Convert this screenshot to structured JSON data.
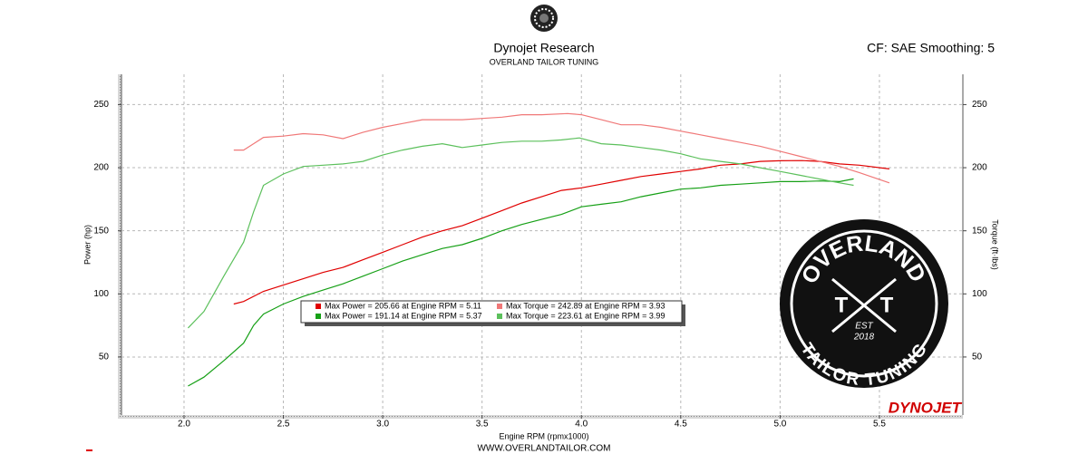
{
  "chart_data": {
    "type": "line",
    "title": "Dynojet Research",
    "subtitle": "OVERLAND TAILOR TUNING",
    "settings_label": "CF: SAE Smoothing: 5",
    "x_label": "Engine RPM (rpmx1000)",
    "y_label": "Power (hp)",
    "y2_label": "Torque (ft·lbs)",
    "footer": "WWW.OVERLANDTAILOR.COM",
    "brand": "DYNOJET",
    "logo": {
      "top": "OVERLAND",
      "bottom": "TAILOR TUNING",
      "left": "T",
      "right": "T",
      "est": "EST",
      "year": "2018"
    },
    "grid": true,
    "xlim": [
      1.667,
      5.92
    ],
    "xticks": [
      {
        "value": 2,
        "label": "2.0"
      },
      2.5,
      {
        "value": 3,
        "label": "3.0"
      },
      3.5,
      {
        "value": 4,
        "label": "4.0"
      },
      4.5,
      {
        "value": 5,
        "label": "5.0"
      },
      5.5
    ],
    "ylim": [
      4,
      274
    ],
    "yticks": [
      50,
      100,
      150,
      200,
      250
    ],
    "y2lim": [
      4,
      274
    ],
    "y2ticks": [
      50,
      100,
      150,
      200,
      250
    ],
    "series": [
      {
        "name": "Max Power = 205.66 at Engine RPM = 5.11",
        "color": "#e00000",
        "x": [
          2.25,
          2.3,
          2.4,
          2.5,
          2.6,
          2.7,
          2.8,
          2.9,
          3.0,
          3.1,
          3.2,
          3.3,
          3.4,
          3.5,
          3.6,
          3.7,
          3.8,
          3.9,
          4.0,
          4.1,
          4.2,
          4.3,
          4.4,
          4.5,
          4.6,
          4.7,
          4.8,
          4.9,
          5.0,
          5.11,
          5.2,
          5.3,
          5.4,
          5.55
        ],
        "values": [
          92,
          94,
          102,
          107,
          112,
          117,
          121,
          127,
          133,
          139,
          145,
          150,
          154,
          160,
          166,
          172,
          177,
          182,
          184,
          187,
          190,
          193,
          195,
          197,
          199,
          202,
          203,
          205,
          205.5,
          205.66,
          205,
          203,
          202,
          199
        ]
      },
      {
        "name": "Max Power = 191.14 at Engine RPM = 5.37",
        "color": "#16a016",
        "x": [
          2.02,
          2.1,
          2.2,
          2.3,
          2.35,
          2.4,
          2.5,
          2.6,
          2.7,
          2.8,
          2.9,
          3.0,
          3.1,
          3.2,
          3.3,
          3.4,
          3.5,
          3.6,
          3.7,
          3.8,
          3.9,
          4.0,
          4.1,
          4.2,
          4.3,
          4.4,
          4.5,
          4.6,
          4.7,
          4.8,
          4.9,
          5.0,
          5.1,
          5.2,
          5.3,
          5.37
        ],
        "values": [
          27,
          34,
          47,
          61,
          75,
          84,
          92,
          98,
          103,
          108,
          114,
          120,
          126,
          131,
          136,
          139,
          144,
          150,
          155,
          159,
          163,
          169,
          171,
          173,
          177,
          180,
          183,
          184,
          186,
          187,
          188,
          189,
          189,
          189.5,
          189,
          191.14
        ]
      },
      {
        "name": "Max Torque = 242.89 at Engine RPM = 3.93",
        "color": "#f07878",
        "axis": "y2",
        "x": [
          2.25,
          2.3,
          2.35,
          2.4,
          2.5,
          2.6,
          2.7,
          2.8,
          2.9,
          3.0,
          3.1,
          3.2,
          3.3,
          3.4,
          3.5,
          3.6,
          3.7,
          3.8,
          3.93,
          4.0,
          4.1,
          4.2,
          4.3,
          4.4,
          4.5,
          4.6,
          4.7,
          4.8,
          4.9,
          5.0,
          5.1,
          5.2,
          5.3,
          5.4,
          5.55
        ],
        "values": [
          214,
          214,
          219,
          224,
          225,
          227,
          226,
          223,
          228,
          232,
          235,
          238,
          238,
          238,
          239,
          240,
          242,
          242,
          242.89,
          242,
          238,
          234,
          234,
          232,
          229,
          226,
          223,
          220,
          217,
          213,
          209,
          205,
          201,
          196,
          188
        ]
      },
      {
        "name": "Max Torque = 223.61 at Engine RPM = 3.99",
        "color": "#5cc05c",
        "axis": "y2",
        "x": [
          2.02,
          2.1,
          2.2,
          2.3,
          2.35,
          2.4,
          2.5,
          2.6,
          2.7,
          2.8,
          2.9,
          3.0,
          3.1,
          3.2,
          3.3,
          3.4,
          3.5,
          3.6,
          3.7,
          3.8,
          3.9,
          3.99,
          4.1,
          4.2,
          4.3,
          4.4,
          4.5,
          4.6,
          4.7,
          4.8,
          4.9,
          5.0,
          5.1,
          5.2,
          5.3,
          5.37
        ],
        "values": [
          73,
          86,
          114,
          141,
          165,
          186,
          195,
          201,
          202,
          203,
          205,
          210,
          214,
          217,
          219,
          216,
          218,
          220,
          221,
          221,
          222,
          223.61,
          219,
          218,
          216,
          214,
          211,
          207,
          205,
          203,
          200,
          197,
          194,
          191,
          188,
          186
        ]
      }
    ]
  }
}
